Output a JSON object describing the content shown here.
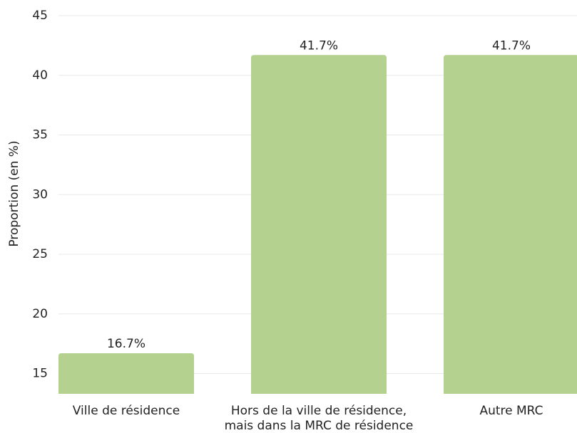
{
  "chart_data": {
    "type": "bar",
    "y_label": "Proportion (en %)",
    "categories": [
      "Ville de résidence",
      "Hors de la ville de résidence,\nmais dans la MRC de résidence",
      "Autre MRC"
    ],
    "values": [
      16.7,
      41.7,
      41.7
    ],
    "value_labels": [
      "16.7%",
      "41.7%",
      "41.7%"
    ],
    "color": "#b5d18f",
    "ylim": [
      13.3,
      45
    ],
    "yticks": [
      15,
      20,
      25,
      30,
      35,
      40,
      45
    ],
    "grid": true
  }
}
